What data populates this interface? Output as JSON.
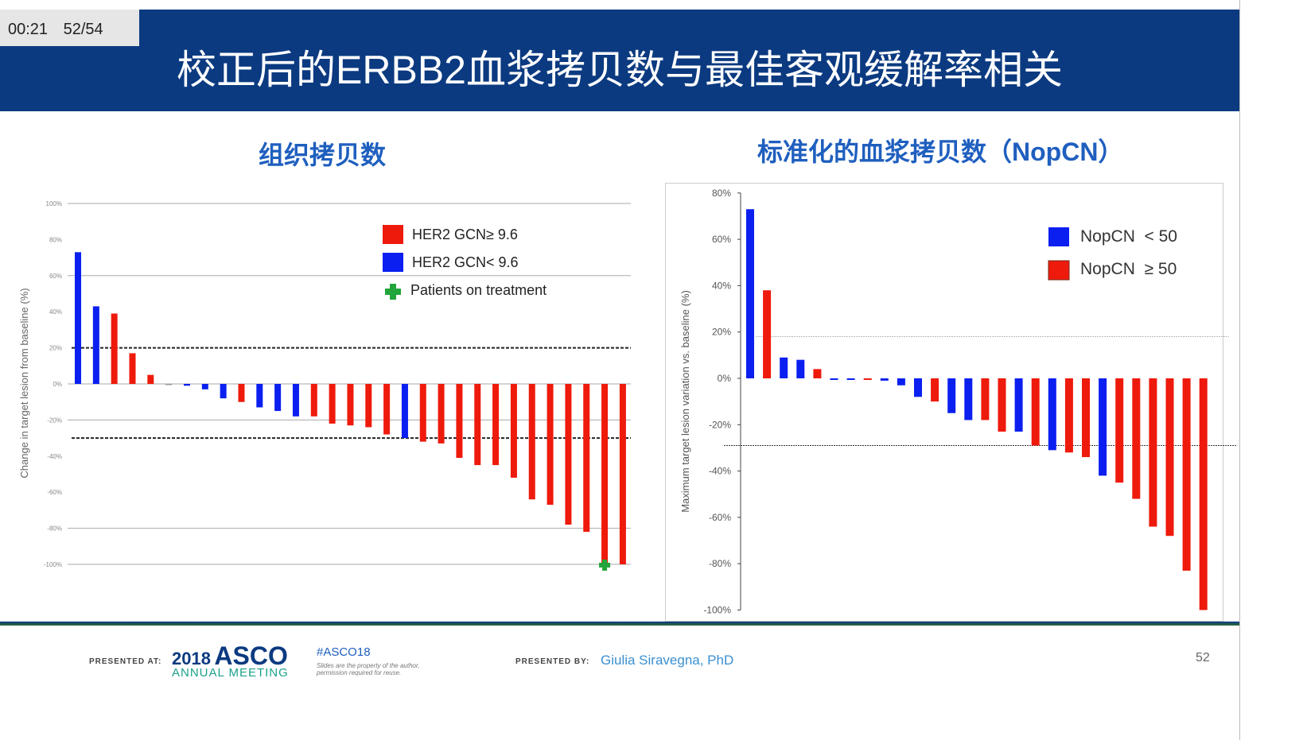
{
  "player": {
    "time": "00:21",
    "slide_counter": "52/54"
  },
  "slide": {
    "title": "校正后的ERBB2血浆拷贝数与最佳客观缓解率相关",
    "page_number": "52"
  },
  "colors": {
    "header": "#0b3a80",
    "red": "#ee1a0c",
    "blue": "#0a1ff0",
    "green": "#22a53a",
    "subtitle": "#1f5fbf"
  },
  "chart_data": [
    {
      "type": "bar",
      "title": "组织拷贝数",
      "ylabel": "Change in target lesion from baseline (%)",
      "ylim": [
        -100,
        100
      ],
      "yticks": [
        "100%",
        "80%",
        "60%",
        "40%",
        "20%",
        "0%",
        "-20%",
        "-40%",
        "-60%",
        "-80%",
        "-100%"
      ],
      "reference_lines": [
        20,
        -30
      ],
      "legend": {
        "placement": "top-right",
        "entries": [
          {
            "label": "HER2 GCN≥ 9.6",
            "color": "#ee1a0c"
          },
          {
            "label": "HER2 GCN< 9.6",
            "color": "#0a1ff0"
          },
          {
            "label": "Patients on treatment",
            "marker": "green-plus"
          }
        ]
      },
      "values": [
        73,
        43,
        39,
        17,
        5,
        0,
        -1,
        -3,
        -8,
        -10,
        -13,
        -15,
        -18,
        -18,
        -22,
        -23,
        -24,
        -28,
        -30,
        -32,
        -33,
        -41,
        -45,
        -45,
        -52,
        -64,
        -67,
        -78,
        -82,
        -100,
        -100
      ],
      "groups": [
        "blue",
        "blue",
        "red",
        "red",
        "red",
        "none",
        "blue",
        "blue",
        "blue",
        "red",
        "blue",
        "blue",
        "blue",
        "red",
        "red",
        "red",
        "red",
        "red",
        "blue",
        "red",
        "red",
        "red",
        "red",
        "red",
        "red",
        "red",
        "red",
        "red",
        "red",
        "red",
        "red"
      ],
      "on_treatment": [
        29
      ]
    },
    {
      "type": "bar",
      "title": "标准化的血浆拷贝数（NopCN）",
      "ylabel": "Maximum target lesion variation vs. baseline (%)",
      "ylim": [
        -100,
        80
      ],
      "yticks": [
        "80%",
        "60%",
        "40%",
        "20%",
        "0%",
        "-20%",
        "-40%",
        "-60%",
        "-80%",
        "-100%"
      ],
      "reference_lines": [
        18,
        -29
      ],
      "legend": {
        "placement": "top-right",
        "entries": [
          {
            "label": "NopCN  < 50",
            "color": "#0a1ff0"
          },
          {
            "label": "NopCN  ≥ 50",
            "color": "#ee1a0c"
          }
        ]
      },
      "values": [
        73,
        38,
        9,
        8,
        4,
        -0.5,
        -0.5,
        -0.5,
        -1,
        -3,
        -8,
        -10,
        -15,
        -18,
        -18,
        -23,
        -23,
        -29,
        -31,
        -32,
        -34,
        -42,
        -45,
        -52,
        -64,
        -68,
        -83,
        -100
      ],
      "groups": [
        "blue",
        "red",
        "blue",
        "blue",
        "red",
        "blue",
        "blue",
        "red",
        "blue",
        "blue",
        "blue",
        "red",
        "blue",
        "blue",
        "red",
        "red",
        "blue",
        "red",
        "blue",
        "red",
        "red",
        "blue",
        "red",
        "red",
        "red",
        "red",
        "red",
        "red"
      ]
    }
  ],
  "footer": {
    "presented_at": "PRESENTED AT:",
    "logo_year": "2018",
    "logo_name": "ASCO",
    "logo_sub": "ANNUAL MEETING",
    "hashtag": "#ASCO18",
    "disclaimer": "Slides are the property of the author, permission required for reuse.",
    "presented_by": "PRESENTED BY:",
    "presenter": "Giulia Siravegna, PhD"
  }
}
